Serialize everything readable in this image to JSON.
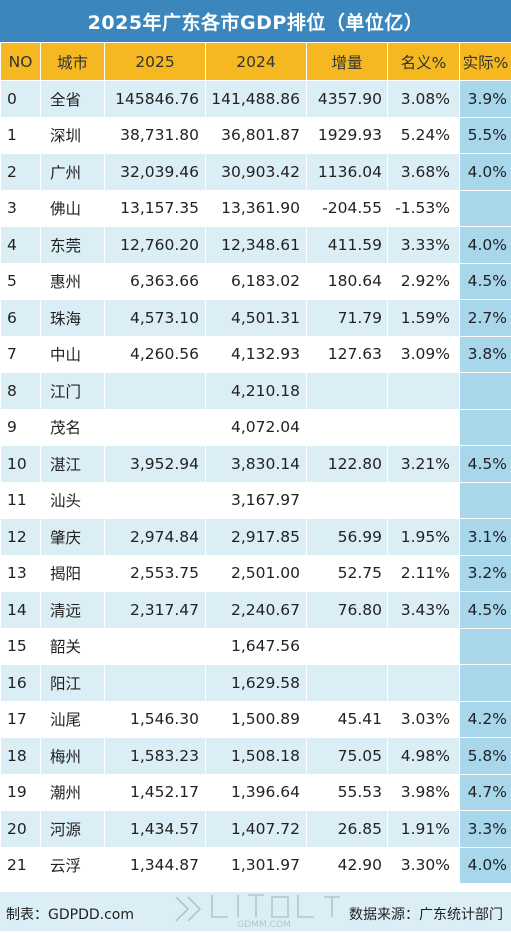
{
  "title": "2025年广东各市GDP排位（单位亿）",
  "headers": [
    "NO",
    "城市",
    "2025",
    "2024",
    "增量",
    "名义%",
    "实际%"
  ],
  "rows": [
    {
      "no": "0",
      "city": "全省",
      "gdp2025": "145846.76",
      "gdp2024": "141,488.86",
      "increase": "4357.90",
      "nominal": "3.08%",
      "real": "3.9%"
    },
    {
      "no": "1",
      "city": "深圳",
      "gdp2025": "38,731.80",
      "gdp2024": "36,801.87",
      "increase": "1929.93",
      "nominal": "5.24%",
      "real": "5.5%"
    },
    {
      "no": "2",
      "city": "广州",
      "gdp2025": "32,039.46",
      "gdp2024": "30,903.42",
      "increase": "1136.04",
      "nominal": "3.68%",
      "real": "4.0%"
    },
    {
      "no": "3",
      "city": "佛山",
      "gdp2025": "13,157.35",
      "gdp2024": "13,361.90",
      "increase": "-204.55",
      "nominal": "-1.53%",
      "real": ""
    },
    {
      "no": "4",
      "city": "东莞",
      "gdp2025": "12,760.20",
      "gdp2024": "12,348.61",
      "increase": "411.59",
      "nominal": "3.33%",
      "real": "4.0%"
    },
    {
      "no": "5",
      "city": "惠州",
      "gdp2025": "6,363.66",
      "gdp2024": "6,183.02",
      "increase": "180.64",
      "nominal": "2.92%",
      "real": "4.5%"
    },
    {
      "no": "6",
      "city": "珠海",
      "gdp2025": "4,573.10",
      "gdp2024": "4,501.31",
      "increase": "71.79",
      "nominal": "1.59%",
      "real": "2.7%"
    },
    {
      "no": "7",
      "city": "中山",
      "gdp2025": "4,260.56",
      "gdp2024": "4,132.93",
      "increase": "127.63",
      "nominal": "3.09%",
      "real": "3.8%"
    },
    {
      "no": "8",
      "city": "江门",
      "gdp2025": "",
      "gdp2024": "4,210.18",
      "increase": "",
      "nominal": "",
      "real": ""
    },
    {
      "no": "9",
      "city": "茂名",
      "gdp2025": "",
      "gdp2024": "4,072.04",
      "increase": "",
      "nominal": "",
      "real": ""
    },
    {
      "no": "10",
      "city": "湛江",
      "gdp2025": "3,952.94",
      "gdp2024": "3,830.14",
      "increase": "122.80",
      "nominal": "3.21%",
      "real": "4.5%"
    },
    {
      "no": "11",
      "city": "汕头",
      "gdp2025": "",
      "gdp2024": "3,167.97",
      "increase": "",
      "nominal": "",
      "real": ""
    },
    {
      "no": "12",
      "city": "肇庆",
      "gdp2025": "2,974.84",
      "gdp2024": "2,917.85",
      "increase": "56.99",
      "nominal": "1.95%",
      "real": "3.1%"
    },
    {
      "no": "13",
      "city": "揭阳",
      "gdp2025": "2,553.75",
      "gdp2024": "2,501.00",
      "increase": "52.75",
      "nominal": "2.11%",
      "real": "3.2%"
    },
    {
      "no": "14",
      "city": "清远",
      "gdp2025": "2,317.47",
      "gdp2024": "2,240.67",
      "increase": "76.80",
      "nominal": "3.43%",
      "real": "4.5%"
    },
    {
      "no": "15",
      "city": "韶关",
      "gdp2025": "",
      "gdp2024": "1,647.56",
      "increase": "",
      "nominal": "",
      "real": ""
    },
    {
      "no": "16",
      "city": "阳江",
      "gdp2025": "",
      "gdp2024": "1,629.58",
      "increase": "",
      "nominal": "",
      "real": ""
    },
    {
      "no": "17",
      "city": "汕尾",
      "gdp2025": "1,546.30",
      "gdp2024": "1,500.89",
      "increase": "45.41",
      "nominal": "3.03%",
      "real": "4.2%"
    },
    {
      "no": "18",
      "city": "梅州",
      "gdp2025": "1,583.23",
      "gdp2024": "1,508.18",
      "increase": "75.05",
      "nominal": "4.98%",
      "real": "5.8%"
    },
    {
      "no": "19",
      "city": "潮州",
      "gdp2025": "1,452.17",
      "gdp2024": "1,396.64",
      "increase": "55.53",
      "nominal": "3.98%",
      "real": "4.7%"
    },
    {
      "no": "20",
      "city": "河源",
      "gdp2025": "1,434.57",
      "gdp2024": "1,407.72",
      "increase": "26.85",
      "nominal": "1.91%",
      "real": "3.3%"
    },
    {
      "no": "21",
      "city": "云浮",
      "gdp2025": "1,344.87",
      "gdp2024": "1,301.97",
      "increase": "42.90",
      "nominal": "3.30%",
      "real": "4.0%"
    }
  ],
  "footer": {
    "maker": "制表：GDPDD.com",
    "source": "数据来源：广东统计部门"
  },
  "watermark": {
    "text": "GDMM.COM",
    "icon": "watermark-logo"
  },
  "colors": {
    "title_bg": "#3a86bd",
    "header_bg": "#f5b820",
    "row_band": "#dbeef5",
    "real_col_bg": "#a8d7ec"
  }
}
